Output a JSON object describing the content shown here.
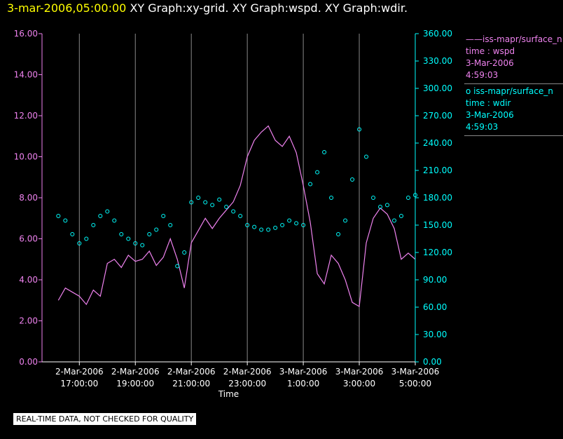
{
  "title": {
    "timestamp": "3-mar-2006,05:00:00",
    "graphs": "XY Graph:xy-grid.  XY Graph:wspd.  XY Graph:wdir."
  },
  "legend": [
    {
      "symbol": "——",
      "name": "iss-mapr/surface_n",
      "line2": "time : wspd",
      "line3": "3-Mar-2006",
      "line4": "4:59:03",
      "color": "#ee82ee"
    },
    {
      "symbol": "o",
      "name": "iss-mapr/surface_n",
      "line2": "time : wdir",
      "line3": "3-Mar-2006",
      "line4": "4:59:03",
      "color": "#00ffff"
    }
  ],
  "disclaimer": "REAL-TIME DATA, NOT CHECKED FOR QUALITY",
  "chart_data": {
    "type": "line",
    "xlabel": "Time",
    "x_ticks": [
      {
        "date": "2-Mar-2006",
        "time": "17:00:00"
      },
      {
        "date": "2-Mar-2006",
        "time": "19:00:00"
      },
      {
        "date": "2-Mar-2006",
        "time": "21:00:00"
      },
      {
        "date": "2-Mar-2006",
        "time": "23:00:00"
      },
      {
        "date": "3-Mar-2006",
        "time": "1:00:00"
      },
      {
        "date": "3-Mar-2006",
        "time": "3:00:00"
      },
      {
        "date": "3-Mar-2006",
        "time": "5:00:00"
      }
    ],
    "x_range": [
      "2-Mar-2006 16:15:00",
      "3-Mar-2006 05:00:00"
    ],
    "grid": true,
    "left_axis": {
      "ticks": [
        "0.00",
        "2.00",
        "4.00",
        "6.00",
        "8.00",
        "10.00",
        "12.00",
        "14.00",
        "16.00"
      ],
      "ylim": [
        0,
        16
      ],
      "color": "#ee82ee"
    },
    "right_axis": {
      "ticks": [
        "0.00",
        "30.00",
        "60.00",
        "90.00",
        "120.00",
        "150.00",
        "180.00",
        "210.00",
        "240.00",
        "270.00",
        "300.00",
        "330.00",
        "360.00"
      ],
      "ylim": [
        0,
        360
      ],
      "color": "#00ffff"
    },
    "series": [
      {
        "name": "iss-mapr/surface_n time : wspd",
        "axis": "left",
        "style": "line",
        "color": "#ee82ee",
        "x": [
          "16:15",
          "16:30",
          "16:45",
          "17:00",
          "17:15",
          "17:30",
          "17:45",
          "18:00",
          "18:15",
          "18:30",
          "18:45",
          "19:00",
          "19:15",
          "19:30",
          "19:45",
          "20:00",
          "20:15",
          "20:30",
          "20:45",
          "21:00",
          "21:15",
          "21:30",
          "21:45",
          "22:00",
          "22:15",
          "22:30",
          "22:45",
          "23:00",
          "23:15",
          "23:30",
          "23:45",
          "00:00",
          "00:15",
          "00:30",
          "00:45",
          "01:00",
          "01:15",
          "01:30",
          "01:45",
          "02:00",
          "02:15",
          "02:30",
          "02:45",
          "03:00",
          "03:15",
          "03:30",
          "03:45",
          "04:00",
          "04:15",
          "04:30",
          "04:45",
          "05:00"
        ],
        "values": [
          3.0,
          3.6,
          3.4,
          3.2,
          2.8,
          3.5,
          3.2,
          4.8,
          5.0,
          4.6,
          5.2,
          4.9,
          5.0,
          5.4,
          4.7,
          5.1,
          6.0,
          5.0,
          3.6,
          5.8,
          6.4,
          7.0,
          6.5,
          7.0,
          7.4,
          7.8,
          8.6,
          10.0,
          10.8,
          11.2,
          11.5,
          10.8,
          10.5,
          11.0,
          10.2,
          8.6,
          6.8,
          4.3,
          3.8,
          5.2,
          4.8,
          4.0,
          2.9,
          2.7,
          5.8,
          7.0,
          7.5,
          7.2,
          6.5,
          5.0,
          5.3,
          5.0
        ]
      },
      {
        "name": "iss-mapr/surface_n time : wdir",
        "axis": "right",
        "style": "points",
        "color": "#00ffff",
        "x": [
          "16:15",
          "16:30",
          "16:45",
          "17:00",
          "17:15",
          "17:30",
          "17:45",
          "18:00",
          "18:15",
          "18:30",
          "18:45",
          "19:00",
          "19:15",
          "19:30",
          "19:45",
          "20:00",
          "20:15",
          "20:30",
          "20:45",
          "21:00",
          "21:15",
          "21:30",
          "21:45",
          "22:00",
          "22:15",
          "22:30",
          "22:45",
          "23:00",
          "23:15",
          "23:30",
          "23:45",
          "00:00",
          "00:15",
          "00:30",
          "00:45",
          "01:00",
          "01:15",
          "01:30",
          "01:45",
          "02:00",
          "02:15",
          "02:30",
          "02:45",
          "03:00",
          "03:15",
          "03:30",
          "03:45",
          "04:00",
          "04:15",
          "04:30",
          "04:45",
          "05:00"
        ],
        "values": [
          160,
          155,
          140,
          130,
          135,
          150,
          160,
          165,
          155,
          140,
          135,
          130,
          128,
          140,
          145,
          160,
          150,
          105,
          120,
          175,
          180,
          175,
          172,
          178,
          170,
          165,
          160,
          150,
          148,
          145,
          145,
          147,
          150,
          155,
          152,
          150,
          195,
          208,
          230,
          180,
          140,
          155,
          200,
          255,
          225,
          180,
          170,
          172,
          155,
          160,
          180,
          183
        ]
      }
    ]
  }
}
